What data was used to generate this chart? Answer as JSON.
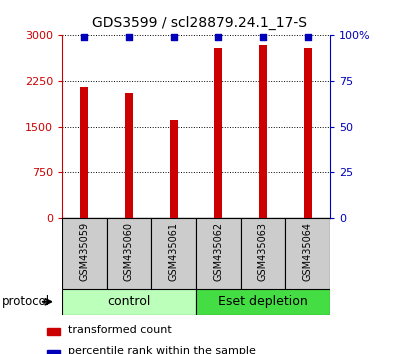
{
  "title": "GDS3599 / scl28879.24.1_17-S",
  "samples": [
    "GSM435059",
    "GSM435060",
    "GSM435061",
    "GSM435062",
    "GSM435063",
    "GSM435064"
  ],
  "red_values": [
    2150,
    2050,
    1600,
    2800,
    2850,
    2800
  ],
  "blue_values": [
    99,
    99,
    99,
    99,
    99,
    99
  ],
  "left_ylim": [
    0,
    3000
  ],
  "right_ylim": [
    0,
    100
  ],
  "left_yticks": [
    0,
    750,
    1500,
    2250,
    3000
  ],
  "right_yticks": [
    0,
    25,
    50,
    75,
    100
  ],
  "right_yticklabels": [
    "0",
    "25",
    "50",
    "75",
    "100%"
  ],
  "bar_color": "#cc0000",
  "dot_color": "#0000bb",
  "groups": [
    {
      "label": "control",
      "samples": [
        0,
        1,
        2
      ],
      "color": "#bbffbb"
    },
    {
      "label": "Eset depletion",
      "samples": [
        3,
        4,
        5
      ],
      "color": "#44dd44"
    }
  ],
  "protocol_label": "protocol",
  "legend_items": [
    {
      "color": "#cc0000",
      "label": "transformed count"
    },
    {
      "color": "#0000bb",
      "label": "percentile rank within the sample"
    }
  ],
  "title_fontsize": 10,
  "label_box_color": "#cccccc",
  "sample_fontsize": 7,
  "group_fontsize": 9
}
